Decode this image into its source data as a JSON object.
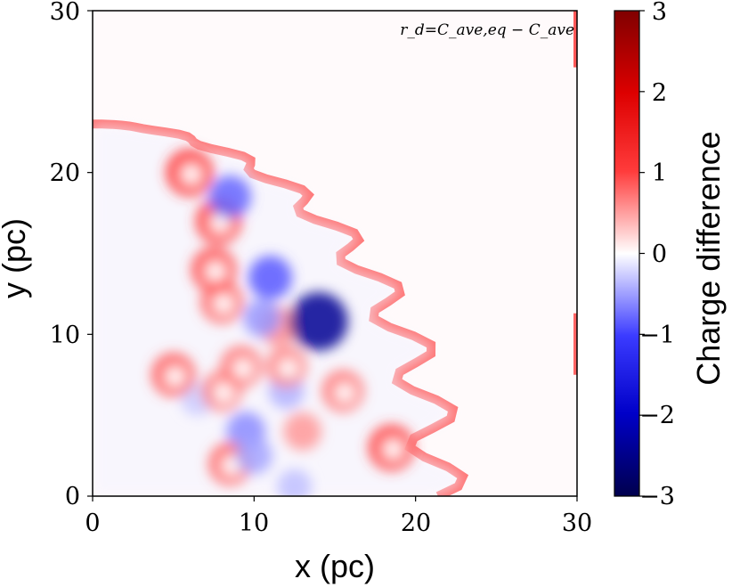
{
  "chart_data": {
    "type": "heatmap",
    "title": "",
    "xlabel": "x (pc)",
    "ylabel": "y (pc)",
    "xlim": [
      0,
      30
    ],
    "ylim": [
      0,
      30
    ],
    "x_ticks": [
      "0",
      "10",
      "20",
      "30"
    ],
    "y_ticks": [
      "0",
      "10",
      "20",
      "30"
    ],
    "annotation": "r_d=C_ave,eq − C_ave",
    "colorbar": {
      "label": "Charge difference",
      "range": [
        -3,
        3
      ],
      "ticks": [
        "−3",
        "−2",
        "−1",
        "0",
        "1",
        "2",
        "3"
      ],
      "colormap": "seismic"
    },
    "colors": {
      "negative_extreme": "#00004d",
      "negative": "#0000ff",
      "zero": "#ffffff",
      "positive": "#ff0000",
      "positive_extreme": "#800000"
    },
    "shell_front_radius_pc": 23,
    "features": [
      {
        "kind": "shell_front_band",
        "value": 1.2
      },
      {
        "kind": "blob",
        "x": 11.5,
        "y": 10.5,
        "value": 0.9
      },
      {
        "kind": "blob",
        "x": 14.0,
        "y": 10.8,
        "value": -2.6
      },
      {
        "kind": "blob",
        "x": 11.0,
        "y": 13.5,
        "value": -1.3
      },
      {
        "kind": "blob",
        "x": 10.5,
        "y": 11.0,
        "value": -0.8
      },
      {
        "kind": "blob",
        "x": 12.0,
        "y": 6.5,
        "value": -0.6
      },
      {
        "kind": "blob",
        "x": 9.5,
        "y": 4.0,
        "value": -0.9
      },
      {
        "kind": "blob",
        "x": 6.5,
        "y": 6.0,
        "value": -0.4
      },
      {
        "kind": "blob",
        "x": 5.0,
        "y": 7.5,
        "value": 1.3
      },
      {
        "kind": "blob",
        "x": 6.0,
        "y": 20.0,
        "value": 1.6
      },
      {
        "kind": "blob",
        "x": 7.8,
        "y": 17.0,
        "value": 1.5
      },
      {
        "kind": "blob",
        "x": 7.5,
        "y": 14.0,
        "value": 1.4
      },
      {
        "kind": "blob",
        "x": 8.0,
        "y": 12.0,
        "value": 1.2
      },
      {
        "kind": "blob",
        "x": 9.2,
        "y": 8.0,
        "value": 1.1
      },
      {
        "kind": "blob",
        "x": 8.0,
        "y": 6.5,
        "value": 1.0
      },
      {
        "kind": "blob",
        "x": 12.0,
        "y": 8.0,
        "value": 1.0
      },
      {
        "kind": "blob",
        "x": 15.5,
        "y": 6.5,
        "value": 1.1
      },
      {
        "kind": "blob",
        "x": 18.5,
        "y": 3.0,
        "value": 1.5
      },
      {
        "kind": "blob",
        "x": 8.5,
        "y": 2.0,
        "value": 1.2
      },
      {
        "kind": "blob",
        "x": 13.0,
        "y": 4.0,
        "value": 0.8
      },
      {
        "kind": "blob",
        "x": 10.0,
        "y": 2.5,
        "value": -0.7
      },
      {
        "kind": "blob",
        "x": 12.5,
        "y": 0.6,
        "value": -0.5
      },
      {
        "kind": "blob",
        "x": 8.5,
        "y": 18.5,
        "value": -1.2
      },
      {
        "kind": "edge_strip",
        "x": 30,
        "y0": 26.5,
        "y1": 30,
        "value": 1.3
      },
      {
        "kind": "edge_strip",
        "x": 30,
        "y0": 7.5,
        "y1": 11.3,
        "value": 1.2
      }
    ]
  }
}
